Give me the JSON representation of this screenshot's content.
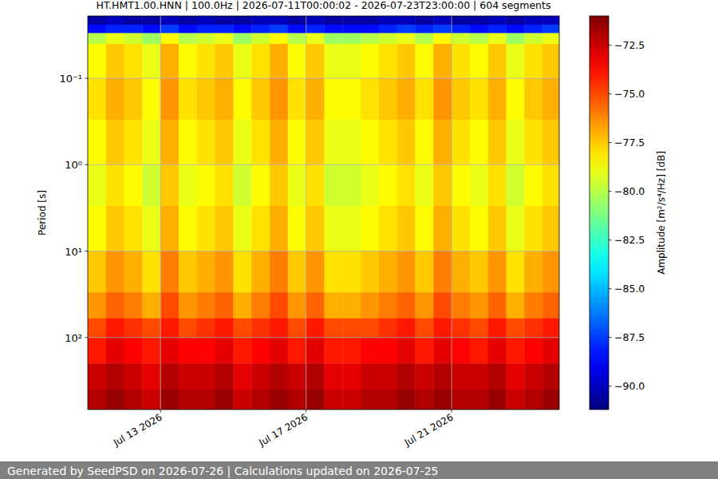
{
  "chart_data": {
    "type": "heatmap",
    "title": "HT.HMT1.00.HNN | 100.0Hz | 2026-07-11T00:00:02 - 2026-07-23T23:00:00 | 604 segments",
    "y_label": "Period [s]",
    "footer": "Generated by SeedPSD on 2026-07-26 | Calculations updated on 2026-07-25",
    "log": "y",
    "grid": true,
    "xlim": [
      "2026-07-11T00:00:02",
      "2026-07-23T23:00:00"
    ],
    "ylim": [
      0.019,
      681
    ],
    "xticks": [
      {
        "value": "2026-07-13",
        "label": "Jul 13 2026"
      },
      {
        "value": "2026-07-17",
        "label": "Jul 17 2026"
      },
      {
        "value": "2026-07-21",
        "label": "Jul 21 2026"
      }
    ],
    "yticks": [
      {
        "value": 0.1,
        "label": "10⁻¹"
      },
      {
        "value": 1,
        "label": "10⁰"
      },
      {
        "value": 10,
        "label": "10¹"
      },
      {
        "value": 100,
        "label": "10²"
      }
    ],
    "x_bins": [
      "2026-07-11T00:00",
      "2026-07-11T12:00",
      "2026-07-12T00:00",
      "2026-07-12T12:00",
      "2026-07-13T00:00",
      "2026-07-13T12:00",
      "2026-07-14T00:00",
      "2026-07-14T12:00",
      "2026-07-15T00:00",
      "2026-07-15T12:00",
      "2026-07-16T00:00",
      "2026-07-16T12:00",
      "2026-07-17T00:00",
      "2026-07-17T12:00",
      "2026-07-18T00:00",
      "2026-07-18T12:00",
      "2026-07-19T00:00",
      "2026-07-19T12:00",
      "2026-07-20T00:00",
      "2026-07-20T12:00",
      "2026-07-21T00:00",
      "2026-07-21T12:00",
      "2026-07-22T00:00",
      "2026-07-22T12:00",
      "2026-07-23T00:00",
      "2026-07-23T12:00",
      "2026-07-23T23:00"
    ],
    "y_bins": [
      0.019,
      0.024,
      0.03,
      0.04,
      0.1,
      0.3,
      1,
      3,
      10,
      30,
      60,
      100,
      200,
      400,
      681
    ],
    "cells": [
      [
        -90.5,
        -90,
        -90.5,
        -90.5,
        -90,
        -90.5,
        -90,
        -90.5,
        -90.5,
        -90,
        -90,
        -90.5,
        -90,
        -90.5,
        -90.5,
        -90.5,
        -90,
        -90,
        -90.5,
        -90,
        -90.5,
        -90.5,
        -90,
        -90.5,
        -90,
        -90
      ],
      [
        -88.5,
        -88,
        -88,
        -88.5,
        -87.5,
        -88.5,
        -88,
        -88,
        -88.5,
        -88,
        -87.5,
        -88.5,
        -88,
        -88.5,
        -88.5,
        -88.5,
        -88,
        -87.5,
        -88,
        -87.5,
        -88,
        -88.5,
        -88,
        -88.5,
        -88,
        -87.5
      ],
      [
        -80,
        -79,
        -79.5,
        -80.5,
        -78.5,
        -80,
        -79.5,
        -79,
        -80.5,
        -79.5,
        -78.5,
        -80,
        -79,
        -80.5,
        -80.5,
        -80,
        -79.5,
        -79,
        -80,
        -78.5,
        -79.5,
        -80,
        -79,
        -80.5,
        -79.5,
        -79
      ],
      [
        -78.5,
        -77.5,
        -78,
        -79,
        -77,
        -78.5,
        -78,
        -77.5,
        -79,
        -78,
        -77,
        -78.5,
        -77.5,
        -79,
        -79,
        -78.5,
        -78,
        -77.5,
        -78.5,
        -77,
        -78,
        -78.5,
        -77.5,
        -79,
        -78,
        -77.5
      ],
      [
        -78,
        -77,
        -77.5,
        -78.5,
        -76.5,
        -78,
        -77.5,
        -77,
        -78.5,
        -77.5,
        -76.5,
        -78,
        -77,
        -78.5,
        -78.5,
        -78,
        -77.5,
        -77,
        -78,
        -76.5,
        -77.5,
        -78,
        -77,
        -78.5,
        -77.5,
        -77
      ],
      [
        -78.5,
        -77.5,
        -78,
        -79,
        -77,
        -78.5,
        -78,
        -77.5,
        -79,
        -78,
        -77,
        -78.5,
        -77.5,
        -79,
        -79,
        -78.5,
        -78,
        -77.5,
        -78.5,
        -77,
        -78,
        -78.5,
        -77.5,
        -79,
        -78,
        -77.5
      ],
      [
        -79,
        -78,
        -78.5,
        -79.5,
        -77.5,
        -79,
        -78.5,
        -78,
        -79.5,
        -78.5,
        -77.5,
        -79,
        -78,
        -79.5,
        -79.5,
        -79,
        -78.5,
        -78,
        -79,
        -77.5,
        -78.5,
        -79,
        -78,
        -79.5,
        -78.5,
        -78
      ],
      [
        -78.5,
        -77.5,
        -78,
        -79,
        -77,
        -78.5,
        -78,
        -77.5,
        -79,
        -78,
        -77,
        -78.5,
        -77.5,
        -79,
        -79,
        -78.5,
        -78,
        -77.5,
        -78.5,
        -77,
        -78,
        -78.5,
        -77.5,
        -79,
        -78,
        -77.5
      ],
      [
        -77.5,
        -76.5,
        -77,
        -78,
        -76,
        -77.5,
        -77,
        -76.5,
        -78,
        -77,
        -76,
        -77.5,
        -76.5,
        -78,
        -78,
        -77.5,
        -77,
        -76.5,
        -77.5,
        -76,
        -77,
        -77.5,
        -76.5,
        -78,
        -77,
        -76.5
      ],
      [
        -76.5,
        -75.5,
        -76,
        -77,
        -75,
        -76.5,
        -76,
        -75.5,
        -77,
        -76,
        -75,
        -76.5,
        -75.5,
        -77,
        -77,
        -76.5,
        -76,
        -75.5,
        -76.5,
        -75,
        -76,
        -76.5,
        -75.5,
        -77,
        -76,
        -75.5
      ],
      [
        -75,
        -74,
        -74.5,
        -75,
        -74,
        -75,
        -74.5,
        -74,
        -75,
        -74.5,
        -74,
        -75,
        -74,
        -75,
        -75,
        -75,
        -74.5,
        -74,
        -75,
        -74,
        -74.5,
        -75,
        -74,
        -75,
        -74.5,
        -74
      ],
      [
        -74,
        -73,
        -73.5,
        -74,
        -73,
        -73.5,
        -73.5,
        -73,
        -74,
        -73.5,
        -73,
        -74,
        -73,
        -74,
        -74,
        -73.5,
        -73.5,
        -73,
        -74,
        -73,
        -73.5,
        -74,
        -73,
        -74,
        -73.5,
        -73
      ],
      [
        -72.5,
        -72,
        -72.5,
        -73,
        -72,
        -72.5,
        -72.5,
        -72,
        -73,
        -72.5,
        -72,
        -72.5,
        -72,
        -73,
        -73,
        -72.5,
        -72.5,
        -72,
        -72.5,
        -72,
        -72.5,
        -72.5,
        -72,
        -73,
        -72.5,
        -72
      ],
      [
        -72,
        -71.5,
        -72,
        -72.5,
        -71.5,
        -72,
        -72,
        -71.5,
        -72.5,
        -72,
        -71.5,
        -72,
        -71.5,
        -72.5,
        -72.5,
        -72,
        -72,
        -71.5,
        -72,
        -71.5,
        -72,
        -72,
        -71.5,
        -72.5,
        -72,
        -71.5
      ]
    ],
    "colorbar": {
      "label": "Amplitude [m²/s⁴/Hz] [dB]",
      "range": [
        -91.2,
        -71.0
      ],
      "ticks": [
        {
          "value": -72.5,
          "label": "−72.5"
        },
        {
          "value": -75,
          "label": "−75.0"
        },
        {
          "value": -77.5,
          "label": "−77.5"
        },
        {
          "value": -80,
          "label": "−80.0"
        },
        {
          "value": -82.5,
          "label": "−82.5"
        },
        {
          "value": -85,
          "label": "−85.0"
        },
        {
          "value": -87.5,
          "label": "−87.5"
        },
        {
          "value": -90,
          "label": "−90.0"
        }
      ]
    }
  }
}
